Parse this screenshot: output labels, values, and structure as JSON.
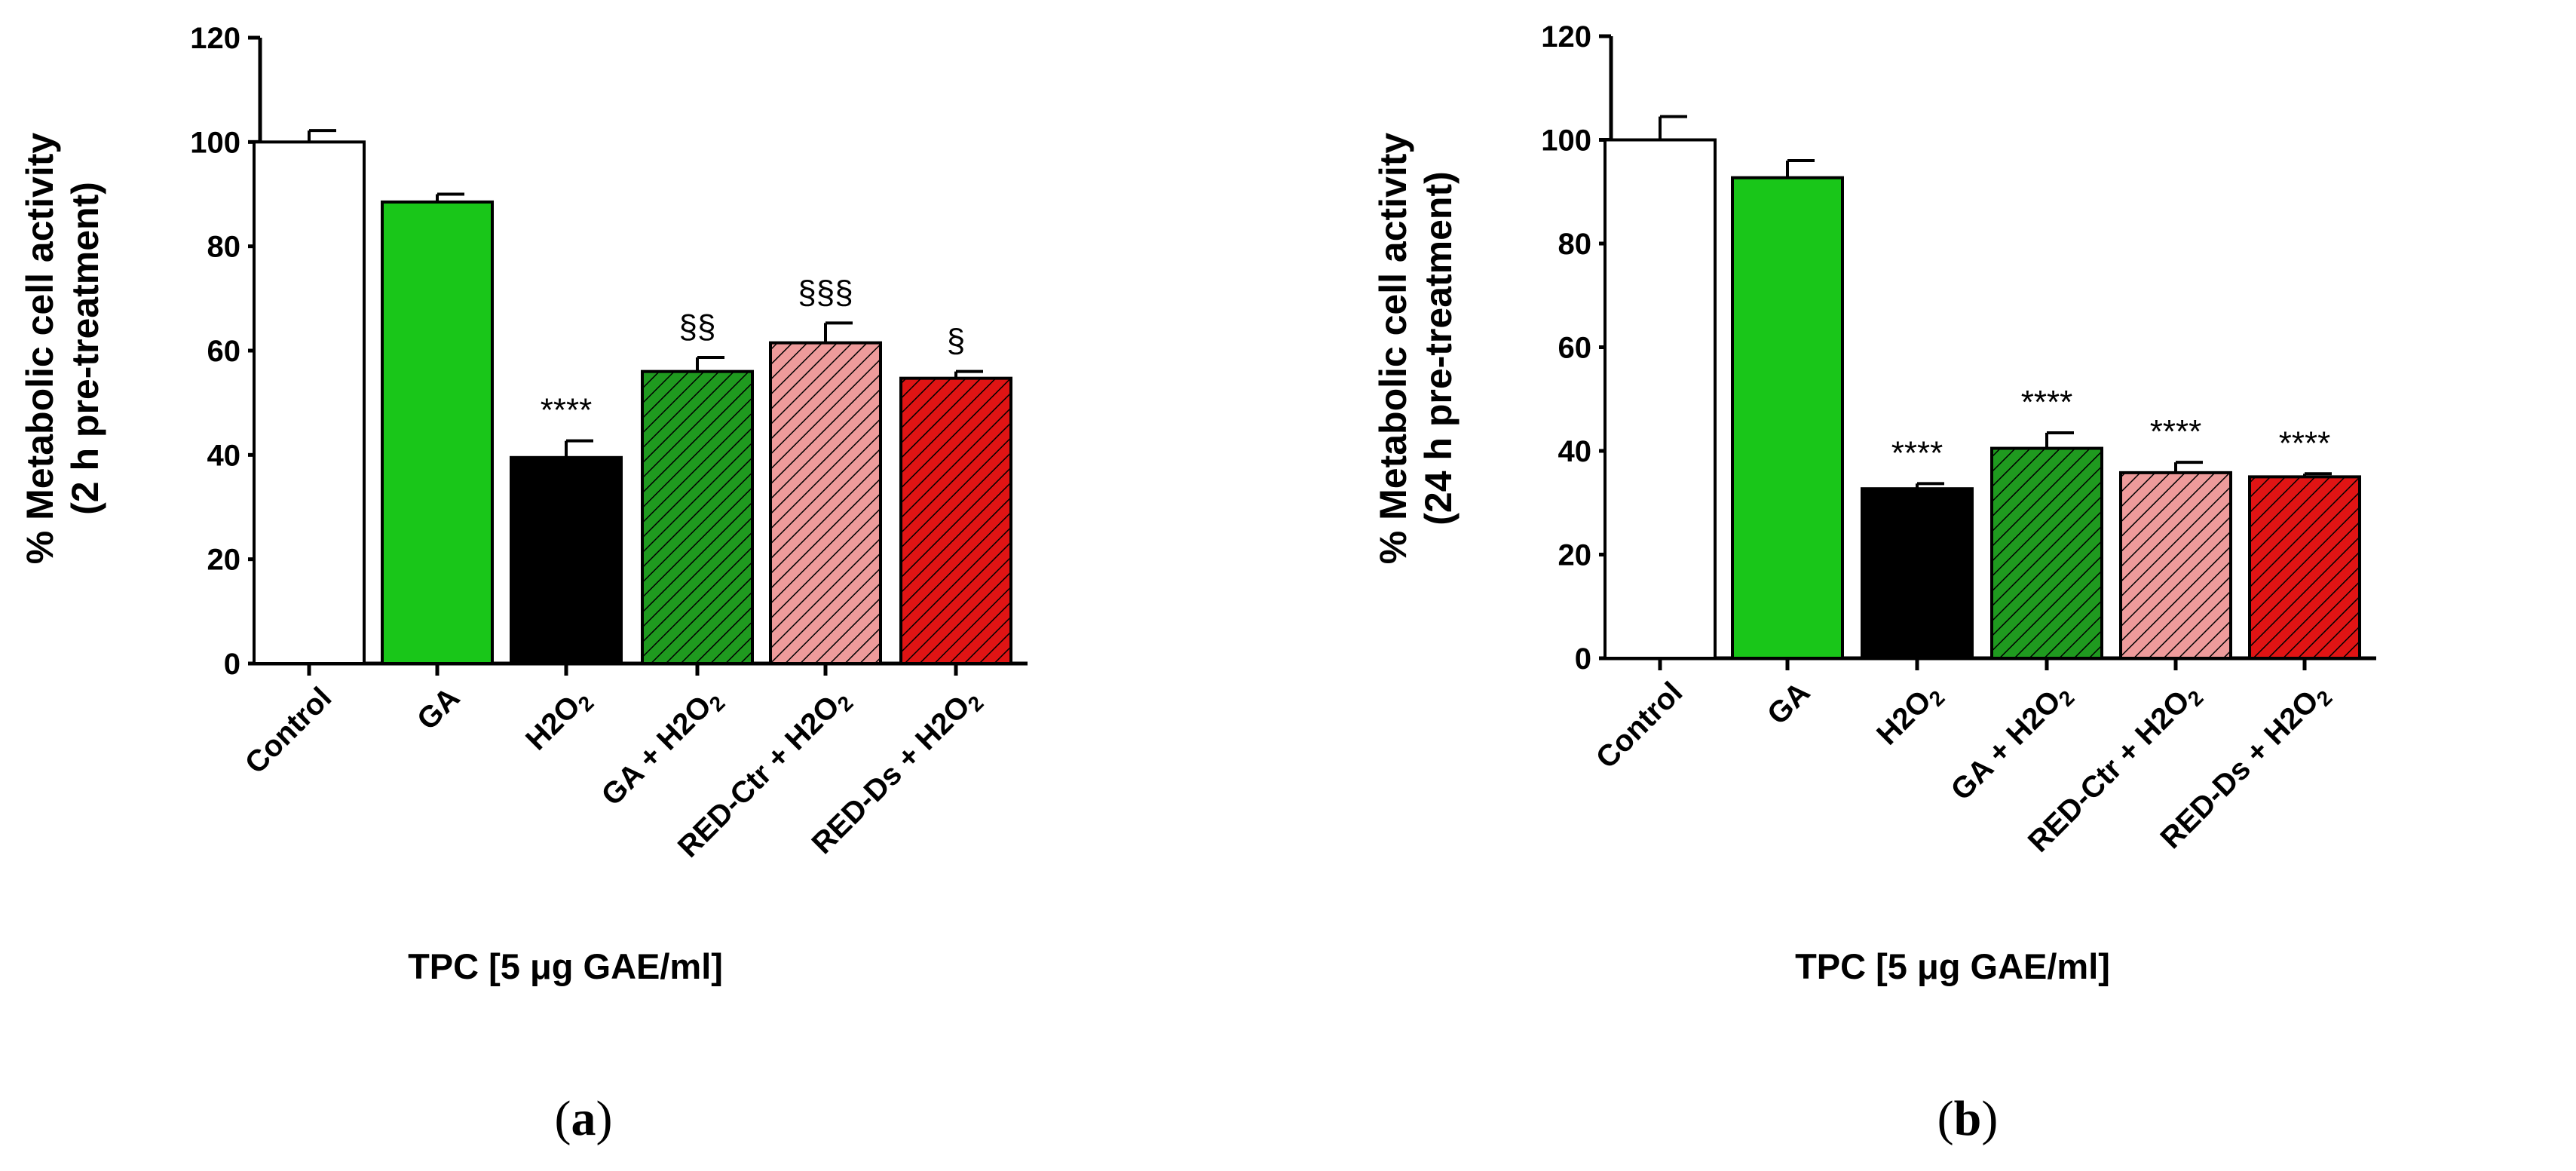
{
  "chart_data": [
    {
      "type": "bar",
      "panel_label": "a",
      "title": "",
      "ylabel_line1": "% Metabolic cell activity",
      "ylabel_line2": "(2 h pre-treatment)",
      "xlabel": "TPC [5 μg GAE/ml]",
      "ylim": [
        0,
        120
      ],
      "yticks": [
        0,
        20,
        40,
        60,
        80,
        100,
        120
      ],
      "categories": [
        {
          "pre": "Control",
          "sub": "",
          "post": ""
        },
        {
          "pre": "GA",
          "sub": "",
          "post": ""
        },
        {
          "pre": "H2O",
          "sub": "2",
          "post": ""
        },
        {
          "pre": "GA + H2O",
          "sub": "2",
          "post": ""
        },
        {
          "pre": "RED-Ctr + H2O",
          "sub": "2",
          "post": ""
        },
        {
          "pre": "RED-Ds + H2O",
          "sub": "2",
          "post": ""
        }
      ],
      "values": [
        100,
        88.5,
        39.5,
        56,
        61.5,
        54.7
      ],
      "errors": [
        2.2,
        1.5,
        3.2,
        2.7,
        3.8,
        1.3
      ],
      "annotations": [
        "",
        "",
        "****",
        "§§",
        "§§§",
        "§"
      ]
    },
    {
      "type": "bar",
      "panel_label": "b",
      "title": "",
      "ylabel_line1": "% Metabolic cell activity",
      "ylabel_line2": "(24 h pre-treatment)",
      "xlabel": "TPC [5 μg GAE/ml]",
      "ylim": [
        0,
        120
      ],
      "yticks": [
        0,
        20,
        40,
        60,
        80,
        100,
        120
      ],
      "categories": [
        {
          "pre": "Control",
          "sub": "",
          "post": ""
        },
        {
          "pre": "GA",
          "sub": "",
          "post": ""
        },
        {
          "pre": "H2O",
          "sub": "2",
          "post": ""
        },
        {
          "pre": "GA + H2O",
          "sub": "2",
          "post": ""
        },
        {
          "pre": "RED-Ctr + H2O",
          "sub": "2",
          "post": ""
        },
        {
          "pre": "RED-Ds + H2O",
          "sub": "2",
          "post": ""
        }
      ],
      "values": [
        100,
        92.7,
        32.7,
        40.5,
        35.8,
        35
      ],
      "errors": [
        4.5,
        3.3,
        1,
        3,
        2,
        0.6
      ],
      "annotations": [
        "",
        "",
        "****",
        "****",
        "****",
        "****"
      ]
    }
  ],
  "colors": {
    "control": "#ffffff",
    "ga": "#19c619",
    "h2o2": "#000000",
    "ga_h2o2": "#1f9a1f",
    "redctr_h2o2": "#ee9b9b",
    "redds_h2o2": "#e01414"
  },
  "bar_fills": [
    "solid:#ffffff",
    "solid:#19c619",
    "solid:#000000",
    "hatch:#1f9a1f",
    "hatch:#ee9b9b",
    "hatch:#e01414"
  ]
}
